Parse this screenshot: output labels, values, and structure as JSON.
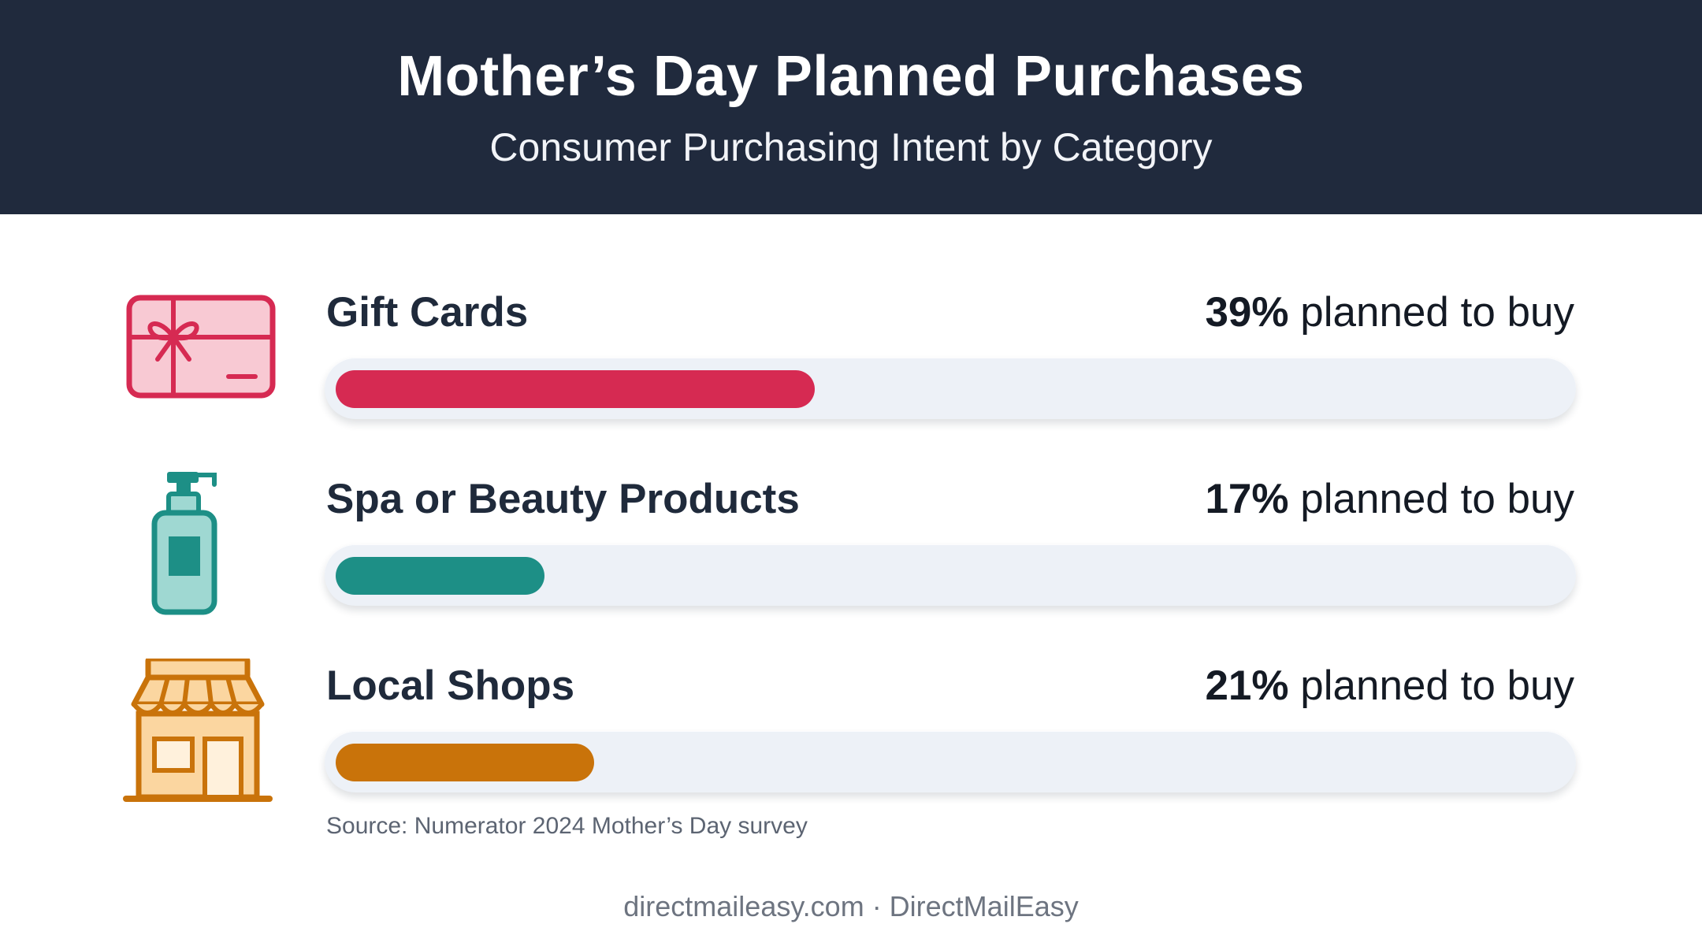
{
  "header": {
    "title": "Mother’s Day Planned Purchases",
    "subtitle": "Consumer Purchasing Intent by Category"
  },
  "chart_data": {
    "type": "bar",
    "orientation": "horizontal",
    "title": "Mother’s Day Planned Purchases",
    "subtitle": "Consumer Purchasing Intent by Category",
    "categories": [
      "Gift Cards",
      "Spa or Beauty Products",
      "Local Shops"
    ],
    "values": [
      39,
      17,
      21
    ],
    "unit": "%",
    "value_suffix": "planned to buy",
    "xlim": [
      0,
      100
    ],
    "grid": false,
    "colors": [
      "#d62a52",
      "#1d8f86",
      "#c9730a"
    ],
    "icons": [
      "gift-card-icon",
      "lotion-bottle-icon",
      "storefront-icon"
    ]
  },
  "source": "Source: Numerator 2024 Mother’s Day survey",
  "footer": "directmaileasy.com · DirectMailEasy"
}
